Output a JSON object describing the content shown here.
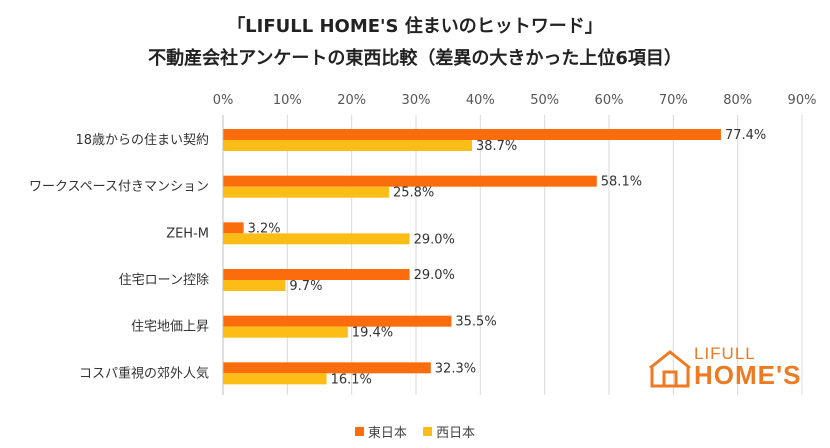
{
  "title": {
    "line1": "「LIFULL HOME'S 住まいのヒットワード」",
    "line2": "不動産会社アンケートの東西比較（差異の大きかった上位6項目）"
  },
  "logo": {
    "line1": "LIFULL",
    "line2": "HOME'S"
  },
  "colors": {
    "east": "#fa6c0c",
    "west": "#fbbd16",
    "grid": "#d9d9d9",
    "logo": "#ee7a22"
  },
  "chart_data": {
    "type": "bar",
    "orientation": "horizontal",
    "categories": [
      "18歳からの住まい契約",
      "ワークスペース付きマンション",
      "ZEH-M",
      "住宅ローン控除",
      "住宅地価上昇",
      "コスパ重視の郊外人気"
    ],
    "series": [
      {
        "name": "東日本",
        "values": [
          77.4,
          58.1,
          3.2,
          29.0,
          35.5,
          32.3
        ],
        "labels": [
          "77.4%",
          "58.1%",
          "3.2%",
          "29.0%",
          "35.5%",
          "32.3%"
        ]
      },
      {
        "name": "西日本",
        "values": [
          38.7,
          25.8,
          29.0,
          9.7,
          19.4,
          16.1
        ],
        "labels": [
          "38.7%",
          "25.8%",
          "29.0%",
          "9.7%",
          "19.4%",
          "16.1%"
        ]
      }
    ],
    "xlim": [
      0,
      90
    ],
    "xticks": [
      0,
      10,
      20,
      30,
      40,
      50,
      60,
      70,
      80,
      90
    ],
    "xtick_labels": [
      "0%",
      "10%",
      "20%",
      "30%",
      "40%",
      "50%",
      "60%",
      "70%",
      "80%",
      "90%"
    ],
    "grid": true,
    "legend": "bottom"
  }
}
